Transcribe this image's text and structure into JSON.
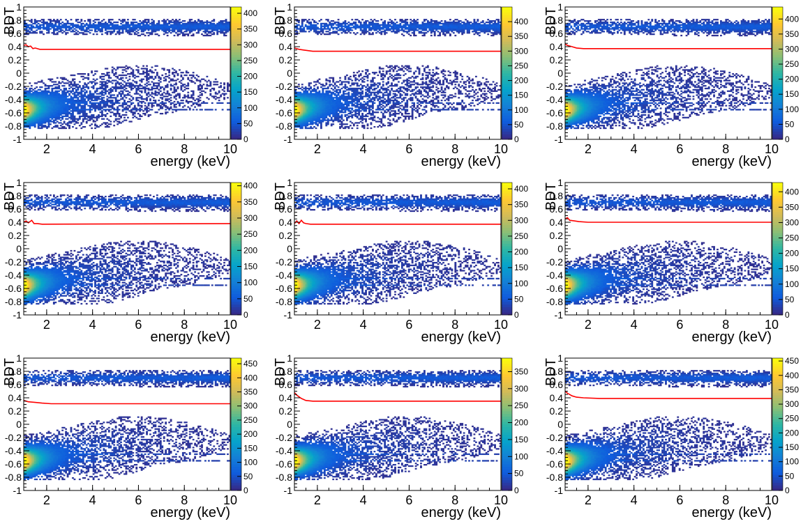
{
  "figure": {
    "panel_count": 9,
    "colormap": [
      "#352a87",
      "#0f5cdd",
      "#1481d6",
      "#06a4ca",
      "#2eb7a4",
      "#87bf77",
      "#d1bb59",
      "#fec832",
      "#f9fb0e"
    ],
    "cut_line_color": "#ff0000"
  },
  "chart_data": [
    {
      "type": "heatmap",
      "xlabel": "energy (keV)",
      "ylabel": "BDT",
      "xlim": [
        1,
        10
      ],
      "ylim": [
        -1,
        1
      ],
      "xticks": [
        "2",
        "4",
        "6",
        "8",
        "10"
      ],
      "yticks": [
        "-1",
        "-0.8",
        "-0.6",
        "-0.4",
        "-0.2",
        "0",
        "0.2",
        "0.4",
        "0.6",
        "0.8",
        "1"
      ],
      "colorbar": {
        "max": 420,
        "ticks": [
          "0",
          "50",
          "100",
          "150",
          "200",
          "250",
          "300",
          "350",
          "400"
        ]
      },
      "cut_line": {
        "x": [
          1.0,
          1.1,
          1.2,
          1.3,
          1.4,
          1.5,
          1.7,
          2.0,
          10.0
        ],
        "y": [
          0.42,
          0.43,
          0.4,
          0.41,
          0.37,
          0.38,
          0.36,
          0.36,
          0.36
        ]
      }
    },
    {
      "type": "heatmap",
      "xlabel": "energy (keV)",
      "ylabel": "BDT",
      "xlim": [
        1,
        10
      ],
      "ylim": [
        -1,
        1
      ],
      "xticks": [
        "2",
        "4",
        "6",
        "8",
        "10"
      ],
      "yticks": [
        "-1",
        "-0.8",
        "-0.6",
        "-0.4",
        "-0.2",
        "0",
        "0.2",
        "0.4",
        "0.6",
        "0.8",
        "1"
      ],
      "colorbar": {
        "max": 450,
        "ticks": [
          "0",
          "50",
          "100",
          "150",
          "200",
          "250",
          "300",
          "350",
          "400"
        ]
      },
      "cut_line": {
        "x": [
          1.0,
          1.2,
          1.4,
          1.6,
          1.8,
          2.2,
          10.0
        ],
        "y": [
          0.38,
          0.36,
          0.35,
          0.34,
          0.33,
          0.33,
          0.33
        ]
      }
    },
    {
      "type": "heatmap",
      "xlabel": "energy (keV)",
      "ylabel": "BDT",
      "xlim": [
        1,
        10
      ],
      "ylim": [
        -1,
        1
      ],
      "xticks": [
        "2",
        "4",
        "6",
        "8",
        "10"
      ],
      "yticks": [
        "-1",
        "-0.8",
        "-0.6",
        "-0.4",
        "-0.2",
        "0",
        "0.2",
        "0.4",
        "0.6",
        "0.8",
        "1"
      ],
      "colorbar": {
        "max": 440,
        "ticks": [
          "0",
          "50",
          "100",
          "150",
          "200",
          "250",
          "300",
          "350",
          "400"
        ]
      },
      "cut_line": {
        "x": [
          1.0,
          1.1,
          1.3,
          1.5,
          1.8,
          2.2,
          10.0
        ],
        "y": [
          0.44,
          0.42,
          0.4,
          0.38,
          0.37,
          0.37,
          0.37
        ]
      }
    },
    {
      "type": "heatmap",
      "xlabel": "energy (keV)",
      "ylabel": "BDT",
      "xlim": [
        1,
        10
      ],
      "ylim": [
        -1,
        1
      ],
      "xticks": [
        "2",
        "4",
        "6",
        "8",
        "10"
      ],
      "yticks": [
        "-1",
        "-0.8",
        "-0.6",
        "-0.4",
        "-0.2",
        "0",
        "0.2",
        "0.4",
        "0.6",
        "0.8",
        "1"
      ],
      "colorbar": {
        "max": 410,
        "ticks": [
          "0",
          "50",
          "100",
          "150",
          "200",
          "250",
          "300",
          "350",
          "400"
        ]
      },
      "cut_line": {
        "x": [
          1.0,
          1.1,
          1.2,
          1.35,
          1.45,
          1.6,
          1.8,
          10.0
        ],
        "y": [
          0.4,
          0.42,
          0.39,
          0.43,
          0.38,
          0.38,
          0.37,
          0.38
        ]
      }
    },
    {
      "type": "heatmap",
      "xlabel": "energy (keV)",
      "ylabel": "BDT",
      "xlim": [
        1,
        10
      ],
      "ylim": [
        -1,
        1
      ],
      "xticks": [
        "2",
        "4",
        "6",
        "8",
        "10"
      ],
      "yticks": [
        "-1",
        "-0.8",
        "-0.6",
        "-0.4",
        "-0.2",
        "0",
        "0.2",
        "0.4",
        "0.6",
        "0.8",
        "1"
      ],
      "colorbar": {
        "max": 420,
        "ticks": [
          "0",
          "50",
          "100",
          "150",
          "200",
          "250",
          "300",
          "350",
          "400"
        ]
      },
      "cut_line": {
        "x": [
          1.0,
          1.1,
          1.2,
          1.3,
          1.4,
          1.5,
          1.7,
          10.0
        ],
        "y": [
          0.38,
          0.42,
          0.38,
          0.43,
          0.39,
          0.38,
          0.37,
          0.37
        ]
      }
    },
    {
      "type": "heatmap",
      "xlabel": "energy (keV)",
      "ylabel": "BDT",
      "xlim": [
        1,
        10
      ],
      "ylim": [
        -1,
        1
      ],
      "xticks": [
        "2",
        "4",
        "6",
        "8",
        "10"
      ],
      "yticks": [
        "-1",
        "-0.8",
        "-0.6",
        "-0.4",
        "-0.2",
        "0",
        "0.2",
        "0.4",
        "0.6",
        "0.8",
        "1"
      ],
      "colorbar": {
        "max": 430,
        "ticks": [
          "0",
          "50",
          "100",
          "150",
          "200",
          "250",
          "300",
          "350",
          "400"
        ]
      },
      "cut_line": {
        "x": [
          1.0,
          1.1,
          1.2,
          1.4,
          1.6,
          2.0,
          10.0
        ],
        "y": [
          0.45,
          0.47,
          0.43,
          0.42,
          0.41,
          0.4,
          0.4
        ]
      }
    },
    {
      "type": "heatmap",
      "xlabel": "energy (keV)",
      "ylabel": "BDT",
      "xlim": [
        1,
        10
      ],
      "ylim": [
        -1,
        1
      ],
      "xticks": [
        "2",
        "4",
        "6",
        "8",
        "10"
      ],
      "yticks": [
        "-1",
        "-0.8",
        "-0.6",
        "-0.4",
        "-0.2",
        "0",
        "0.2",
        "0.4",
        "0.6",
        "0.8",
        "1"
      ],
      "colorbar": {
        "max": 470,
        "ticks": [
          "0",
          "50",
          "100",
          "150",
          "200",
          "250",
          "300",
          "350",
          "400",
          "450"
        ]
      },
      "cut_line": {
        "x": [
          1.0,
          1.2,
          1.5,
          1.8,
          2.2,
          3.0,
          10.0
        ],
        "y": [
          0.36,
          0.34,
          0.33,
          0.32,
          0.31,
          0.31,
          0.31
        ]
      }
    },
    {
      "type": "heatmap",
      "xlabel": "energy (keV)",
      "ylabel": "BDT",
      "xlim": [
        1,
        10
      ],
      "ylim": [
        -1,
        1
      ],
      "xticks": [
        "2",
        "4",
        "6",
        "8",
        "10"
      ],
      "yticks": [
        "-1",
        "-0.8",
        "-0.6",
        "-0.4",
        "-0.2",
        "0",
        "0.2",
        "0.4",
        "0.6",
        "0.8",
        "1"
      ],
      "colorbar": {
        "max": 390,
        "ticks": [
          "0",
          "50",
          "100",
          "150",
          "200",
          "250",
          "300",
          "350"
        ]
      },
      "cut_line": {
        "x": [
          1.0,
          1.1,
          1.3,
          1.5,
          1.8,
          2.5,
          10.0
        ],
        "y": [
          0.48,
          0.44,
          0.39,
          0.36,
          0.35,
          0.35,
          0.35
        ]
      }
    },
    {
      "type": "heatmap",
      "xlabel": "energy (keV)",
      "ylabel": "BDT",
      "xlim": [
        1,
        10
      ],
      "ylim": [
        -1,
        1
      ],
      "xticks": [
        "2",
        "4",
        "6",
        "8",
        "10"
      ],
      "yticks": [
        "-1",
        "-0.8",
        "-0.6",
        "-0.4",
        "-0.2",
        "0",
        "0.2",
        "0.4",
        "0.6",
        "0.8",
        "1"
      ],
      "colorbar": {
        "max": 460,
        "ticks": [
          "0",
          "50",
          "100",
          "150",
          "200",
          "250",
          "300",
          "350",
          "400",
          "450"
        ]
      },
      "cut_line": {
        "x": [
          1.0,
          1.1,
          1.3,
          1.5,
          1.8,
          2.5,
          10.0
        ],
        "y": [
          0.5,
          0.47,
          0.43,
          0.41,
          0.4,
          0.39,
          0.39
        ]
      }
    }
  ]
}
